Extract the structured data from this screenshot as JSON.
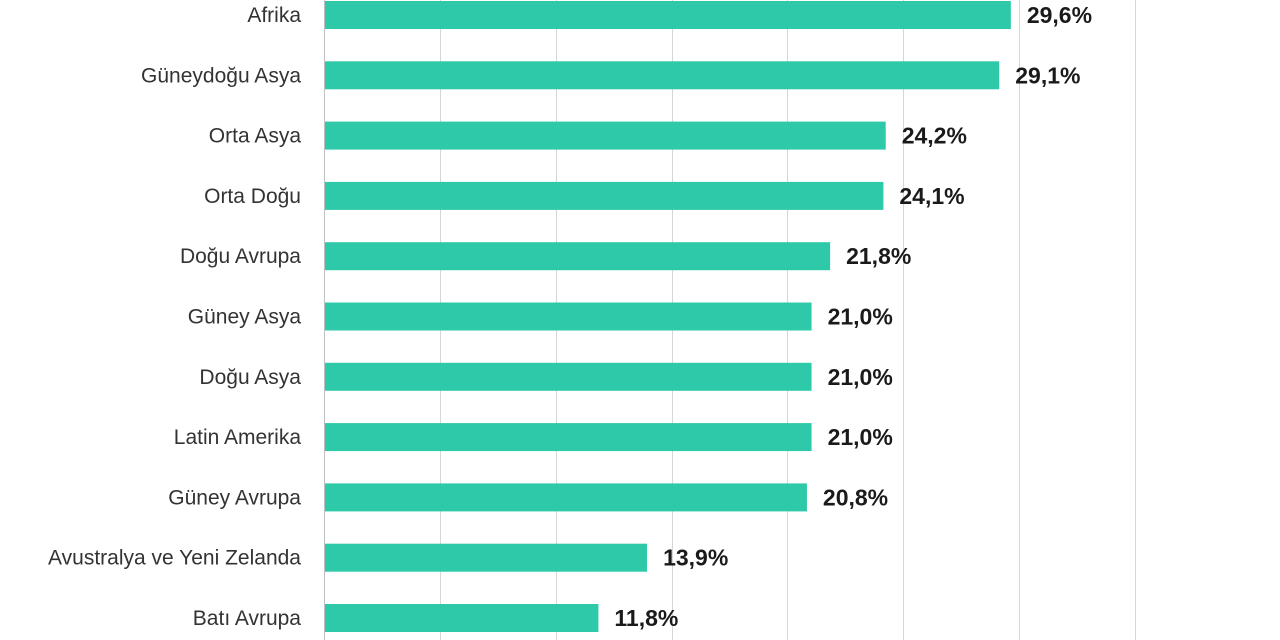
{
  "chart_data": {
    "type": "bar",
    "orientation": "horizontal",
    "categories": [
      "Afrika",
      "Güneydoğu Asya",
      "Orta Asya",
      "Orta Doğu",
      "Doğu Avrupa",
      "Güney Asya",
      "Doğu Asya",
      "Latin Amerika",
      "Güney Avrupa",
      "Avustralya ve Yeni Zelanda",
      "Batı Avrupa"
    ],
    "values": [
      29.6,
      29.1,
      24.2,
      24.1,
      21.8,
      21.0,
      21.0,
      21.0,
      20.8,
      13.9,
      11.8
    ],
    "value_labels": [
      "29,6%",
      "29,1%",
      "24,2%",
      "24,1%",
      "21,8%",
      "21,0%",
      "21,0%",
      "21,0%",
      "20,8%",
      "13,9%",
      "11,8%"
    ],
    "xlim": [
      0,
      35
    ],
    "grid": true,
    "legend": "none",
    "bar_color": "#2ec9a9",
    "grid_color": "#d6d6d6"
  }
}
